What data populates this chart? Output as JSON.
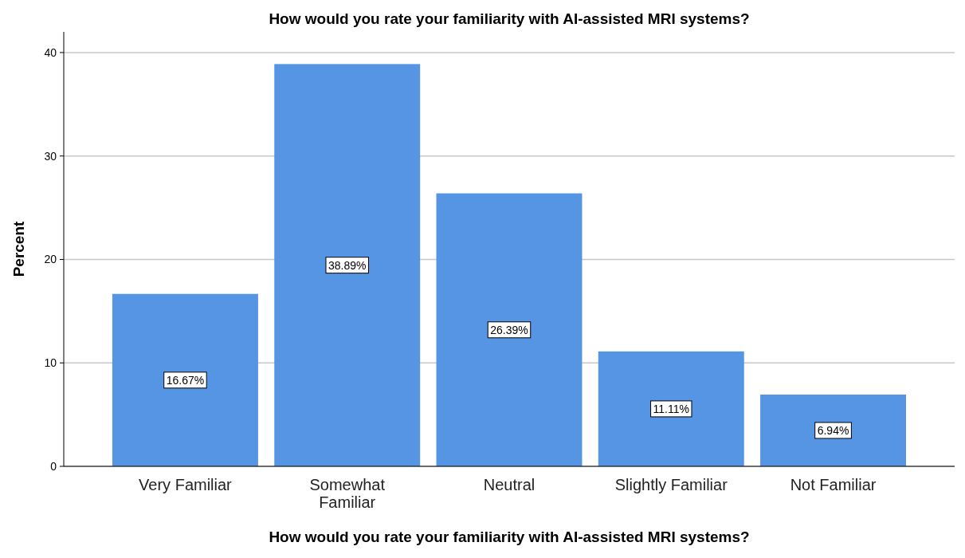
{
  "chart_data": {
    "type": "bar",
    "title": "How would you rate your familiarity with AI-assisted MRI systems?",
    "xlabel": "How would you rate your familiarity with AI-assisted MRI systems?",
    "ylabel": "Percent",
    "categories": [
      "Very Familiar",
      "Somewhat Familiar",
      "Neutral",
      "Slightly Familiar",
      "Not Familiar"
    ],
    "values": [
      16.67,
      38.89,
      26.39,
      11.11,
      6.94
    ],
    "value_labels": [
      "16.67%",
      "38.89%",
      "26.39%",
      "11.11%",
      "6.94%"
    ],
    "color": "#5595e3",
    "ylim": [
      0,
      42
    ],
    "yticks": [
      0,
      10,
      20,
      30,
      40
    ],
    "grid": "y"
  }
}
